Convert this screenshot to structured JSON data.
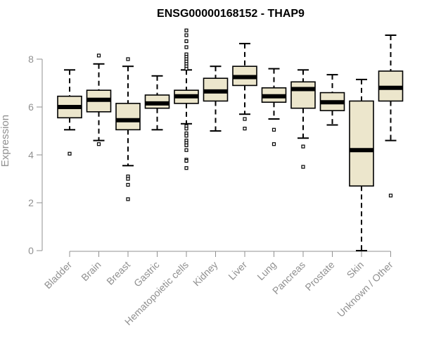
{
  "chart_data": {
    "type": "box",
    "title": "ENSG00000168152 - THAP9",
    "ylabel": "Expression",
    "xlabel": "",
    "ylim": [
      0,
      9.5
    ],
    "yticks": [
      0,
      2,
      4,
      6,
      8
    ],
    "grid": false,
    "legend": "none",
    "colors": {
      "box_fill": "#ece6cc",
      "box_stroke": "#000000",
      "axis": "#909090",
      "title": "#000000"
    },
    "categories": [
      "Bladder",
      "Brain",
      "Breast",
      "Gastric",
      "Hematopoietic cells",
      "Kidney",
      "Liver",
      "Lung",
      "Pancreas",
      "Prostate",
      "Skin",
      "Unknown / Other"
    ],
    "boxes": [
      {
        "category": "Bladder",
        "min": 5.05,
        "q1": 5.55,
        "median": 6.0,
        "q3": 6.45,
        "max": 7.55,
        "outliers": [
          4.05
        ]
      },
      {
        "category": "Brain",
        "min": 4.6,
        "q1": 5.8,
        "median": 6.3,
        "q3": 6.7,
        "max": 7.8,
        "outliers": [
          8.15,
          4.45
        ]
      },
      {
        "category": "Breast",
        "min": 3.55,
        "q1": 5.05,
        "median": 5.45,
        "q3": 6.15,
        "max": 7.7,
        "outliers": [
          8.0,
          3.1,
          3.0,
          2.75,
          2.15
        ]
      },
      {
        "category": "Gastric",
        "min": 5.05,
        "q1": 5.95,
        "median": 6.15,
        "q3": 6.5,
        "max": 7.3,
        "outliers": []
      },
      {
        "category": "Hematopoietic cells",
        "min": 5.3,
        "q1": 6.15,
        "median": 6.45,
        "q3": 6.7,
        "max": 7.55,
        "outliers": [
          9.2,
          9.0,
          8.75,
          8.5,
          8.2,
          8.1,
          8.0,
          7.9,
          7.8,
          7.7,
          7.6,
          5.2,
          5.1,
          4.9,
          4.8,
          4.6,
          4.5,
          4.4,
          4.2,
          3.8,
          3.75,
          3.45
        ]
      },
      {
        "category": "Kidney",
        "min": 5.0,
        "q1": 6.25,
        "median": 6.65,
        "q3": 7.2,
        "max": 7.7,
        "outliers": []
      },
      {
        "category": "Liver",
        "min": 5.7,
        "q1": 6.9,
        "median": 7.25,
        "q3": 7.7,
        "max": 8.65,
        "outliers": [
          5.5,
          5.1
        ]
      },
      {
        "category": "Lung",
        "min": 5.5,
        "q1": 6.2,
        "median": 6.45,
        "q3": 6.8,
        "max": 7.6,
        "outliers": [
          5.05,
          4.45
        ]
      },
      {
        "category": "Pancreas",
        "min": 4.7,
        "q1": 5.95,
        "median": 6.75,
        "q3": 7.05,
        "max": 7.55,
        "outliers": [
          4.35,
          3.5
        ]
      },
      {
        "category": "Prostate",
        "min": 5.25,
        "q1": 5.85,
        "median": 6.2,
        "q3": 6.6,
        "max": 7.35,
        "outliers": []
      },
      {
        "category": "Skin",
        "min": 0.0,
        "q1": 2.7,
        "median": 4.2,
        "q3": 6.25,
        "max": 7.15,
        "outliers": []
      },
      {
        "category": "Unknown / Other",
        "min": 4.6,
        "q1": 6.25,
        "median": 6.8,
        "q3": 7.5,
        "max": 9.0,
        "outliers": [
          2.3
        ]
      }
    ]
  }
}
